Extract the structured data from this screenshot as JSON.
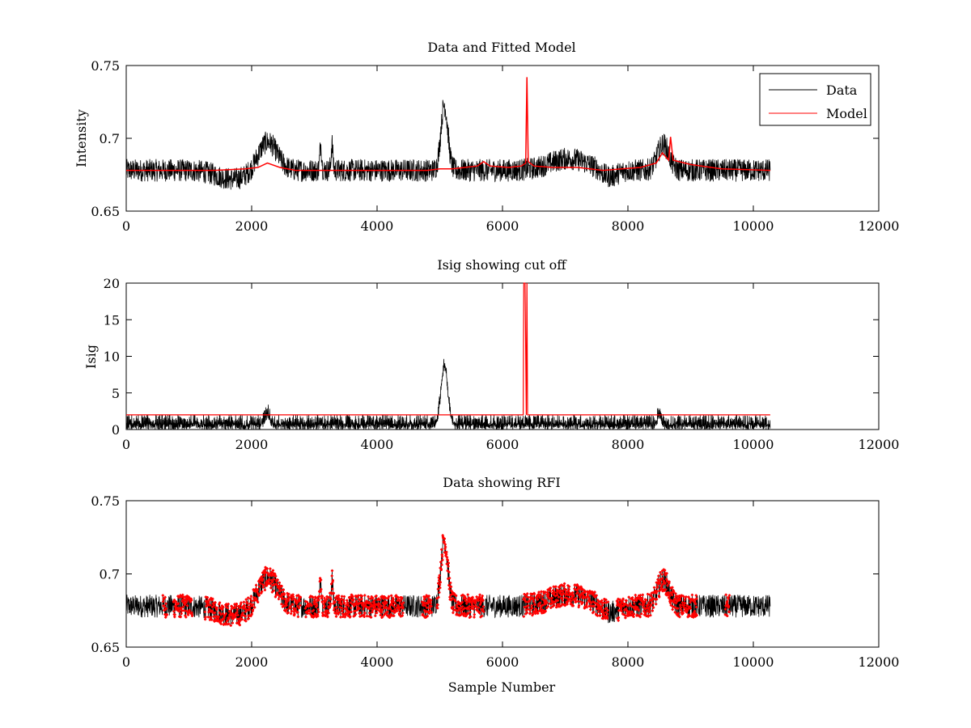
{
  "figure_label": "Data and Fitted Model / Isig showing cut off / Data showing RFI",
  "colors": {
    "data": "#000000",
    "model": "#ff0000",
    "rfi": "#ff0000",
    "cutoff": "#ff0000"
  },
  "chart_data": [
    {
      "type": "line",
      "title": "Data and Fitted Model",
      "xlabel": "",
      "ylabel": "Intensity",
      "xlim": [
        0,
        12000
      ],
      "ylim": [
        0.65,
        0.75
      ],
      "xticks": [
        "0",
        "2000",
        "4000",
        "6000",
        "8000",
        "10000",
        "12000"
      ],
      "yticks": [
        "0.65",
        "0.7",
        "0.75"
      ],
      "legend": {
        "position": "top-right",
        "entries": [
          "Data",
          "Model"
        ]
      },
      "series": [
        {
          "name": "Data",
          "style": "noisy-line",
          "x_range": [
            0,
            10270
          ],
          "baseline": 0.678,
          "noise": 0.006,
          "features": [
            {
              "center": 2250,
              "width": 150,
              "amplitude": 0.02
            },
            {
              "center": 1700,
              "width": 250,
              "amplitude": -0.006
            },
            {
              "center": 3100,
              "width": 15,
              "amplitude": 0.018
            },
            {
              "center": 3280,
              "width": 15,
              "amplitude": 0.018
            },
            {
              "center": 5070,
              "width": 55,
              "amplitude": 0.045
            },
            {
              "center": 7050,
              "width": 300,
              "amplitude": 0.008
            },
            {
              "center": 7700,
              "width": 120,
              "amplitude": -0.005
            },
            {
              "center": 8560,
              "width": 90,
              "amplitude": 0.018
            }
          ]
        },
        {
          "name": "Model",
          "x": [
            0,
            1400,
            1900,
            2100,
            2250,
            2450,
            2700,
            4800,
            5000,
            5200,
            5600,
            5700,
            5800,
            6100,
            6300,
            6370,
            6390,
            6410,
            6500,
            6800,
            7200,
            7600,
            8200,
            8450,
            8550,
            8650,
            8680,
            8720,
            9000,
            9500,
            10270
          ],
          "y": [
            0.678,
            0.678,
            0.679,
            0.68,
            0.683,
            0.68,
            0.678,
            0.678,
            0.679,
            0.679,
            0.681,
            0.684,
            0.681,
            0.68,
            0.681,
            0.683,
            0.742,
            0.684,
            0.681,
            0.68,
            0.68,
            0.678,
            0.68,
            0.683,
            0.69,
            0.685,
            0.701,
            0.685,
            0.682,
            0.679,
            0.678
          ]
        }
      ]
    },
    {
      "type": "line",
      "title": "Isig showing cut off",
      "xlabel": "",
      "ylabel": "Isig",
      "xlim": [
        0,
        12000
      ],
      "ylim": [
        0,
        20
      ],
      "xticks": [
        "0",
        "2000",
        "4000",
        "6000",
        "8000",
        "10000",
        "12000"
      ],
      "yticks": [
        "0",
        "5",
        "10",
        "15",
        "20"
      ],
      "series": [
        {
          "name": "Isig",
          "style": "noisy-line",
          "x_range": [
            0,
            10270
          ],
          "baseline": 0.8,
          "noise": 1.1,
          "features": [
            {
              "center": 5070,
              "width": 55,
              "amplitude": 7.8
            },
            {
              "center": 2250,
              "width": 40,
              "amplitude": 1.5
            },
            {
              "center": 8500,
              "width": 30,
              "amplitude": 1.5
            }
          ]
        },
        {
          "name": "Cut off",
          "x": [
            0,
            6330,
            6340,
            6360,
            6380,
            6390,
            6400,
            10270
          ],
          "y": [
            2,
            2,
            20,
            20,
            2,
            20,
            2,
            2
          ]
        }
      ]
    },
    {
      "type": "scatter",
      "title": "Data showing RFI",
      "xlabel": "Sample Number",
      "ylabel": "",
      "xlim": [
        0,
        12000
      ],
      "ylim": [
        0.65,
        0.75
      ],
      "xticks": [
        "0",
        "2000",
        "4000",
        "6000",
        "8000",
        "10000",
        "12000"
      ],
      "yticks": [
        "0.65",
        "0.7",
        "0.75"
      ],
      "series": [
        {
          "name": "Data",
          "style": "noisy-line",
          "x_range": [
            0,
            10270
          ]
        },
        {
          "name": "RFI",
          "style": "markers",
          "flagged_ranges": [
            [
              580,
              650
            ],
            [
              750,
              1050
            ],
            [
              1250,
              2780
            ],
            [
              2850,
              4420
            ],
            [
              4720,
              4870
            ],
            [
              4950,
              5700
            ],
            [
              6330,
              7680
            ],
            [
              7820,
              9100
            ],
            [
              9550,
              9620
            ]
          ]
        }
      ]
    }
  ]
}
